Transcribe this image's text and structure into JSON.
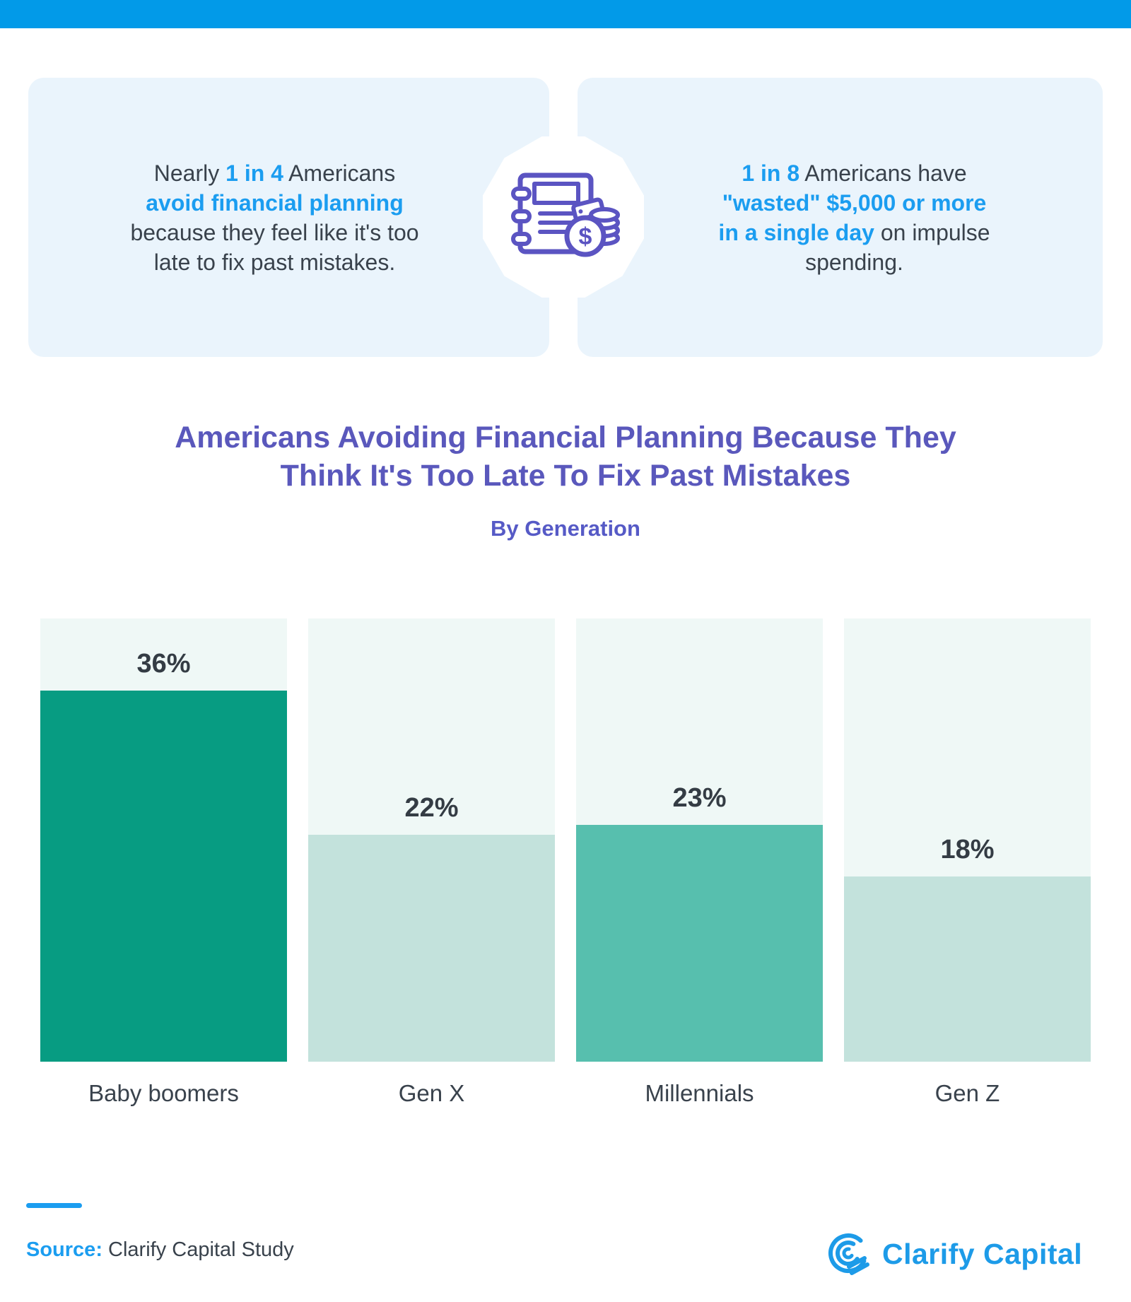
{
  "page": {
    "top_bar_color": "#029AE8"
  },
  "callouts": {
    "left": {
      "lines": [
        [
          {
            "t": "Nearly "
          },
          {
            "t": "1 in 4",
            "h": true
          },
          {
            "t": " Americans"
          }
        ],
        [
          {
            "t": "avoid financial planning",
            "h": true
          }
        ],
        [
          {
            "t": "because they feel like it's too"
          }
        ],
        [
          {
            "t": "late to fix past mistakes."
          }
        ]
      ]
    },
    "right": {
      "lines": [
        [
          {
            "t": "1 in 8",
            "h": true
          },
          {
            "t": " Americans have"
          }
        ],
        [
          {
            "t": "\"wasted\" $5,000 or more",
            "h": true
          }
        ],
        [
          {
            "t": "in a single day",
            "h": true
          },
          {
            "t": " on impulse"
          }
        ],
        [
          {
            "t": "spending."
          }
        ]
      ]
    },
    "icon": "financial-planner-notebook-with-coins-icon",
    "highlight_color": "#1B9DF0"
  },
  "chart_data": {
    "type": "bar",
    "title": "Americans Avoiding Financial Planning Because They Think It's Too Late To Fix Past Mistakes",
    "title_lines": [
      "Americans Avoiding Financial Planning Because They",
      "Think It's Too Late To Fix Past Mistakes"
    ],
    "subtitle": "By Generation",
    "categories": [
      "Baby boomers",
      "Gen X",
      "Millennials",
      "Gen Z"
    ],
    "values": [
      36,
      22,
      23,
      18
    ],
    "value_labels": [
      "36%",
      "22%",
      "23%",
      "18%"
    ],
    "bar_colors": [
      "#079C82",
      "#C3E2DC",
      "#57BFAE",
      "#C3E2DC"
    ],
    "track_color": "#EFF8F6",
    "axis_max": 43,
    "grid": false,
    "legend": false,
    "title_color": "#5A58BC",
    "subtitle_color": "#565AC6"
  },
  "footer": {
    "source_label": "Source:",
    "source_text": " Clarify Capital Study",
    "logo_text": "Clarify Capital",
    "logo_color": "#1D9BE8"
  }
}
